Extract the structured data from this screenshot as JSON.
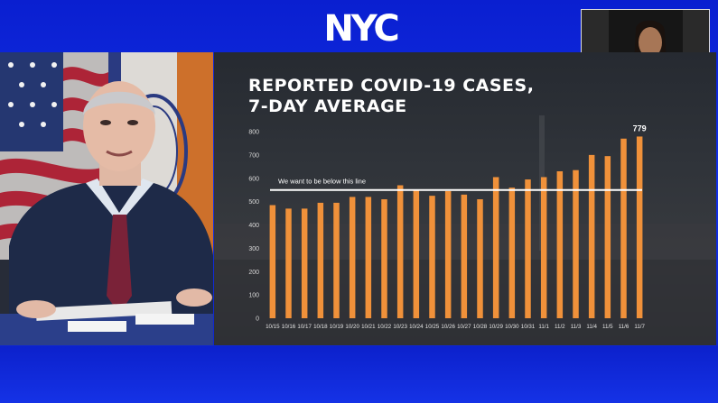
{
  "header": {
    "logo_text": "NYC"
  },
  "colors": {
    "background": "#1230e8",
    "bar": "#f0913a",
    "threshold_line": "#ffffff"
  },
  "chart_data": {
    "type": "bar",
    "title_line1": "REPORTED COVID-19 CASES,",
    "title_line2": "7-DAY AVERAGE",
    "categories": [
      "10/15",
      "10/16",
      "10/17",
      "10/18",
      "10/19",
      "10/20",
      "10/21",
      "10/22",
      "10/23",
      "10/24",
      "10/25",
      "10/26",
      "10/27",
      "10/28",
      "10/29",
      "10/30",
      "10/31",
      "11/1",
      "11/2",
      "11/3",
      "11/4",
      "11/5",
      "11/6",
      "11/7"
    ],
    "values": [
      485,
      470,
      470,
      495,
      495,
      520,
      520,
      510,
      570,
      550,
      525,
      545,
      530,
      510,
      605,
      560,
      595,
      605,
      630,
      635,
      700,
      695,
      770,
      779
    ],
    "ylim": [
      0,
      800
    ],
    "yticks": [
      0,
      100,
      200,
      300,
      400,
      500,
      600,
      700,
      800
    ],
    "threshold": {
      "value": 550,
      "label": "We want to be below this line"
    },
    "data_labels": [
      {
        "category": "11/7",
        "text": "779"
      }
    ],
    "grid": false
  }
}
